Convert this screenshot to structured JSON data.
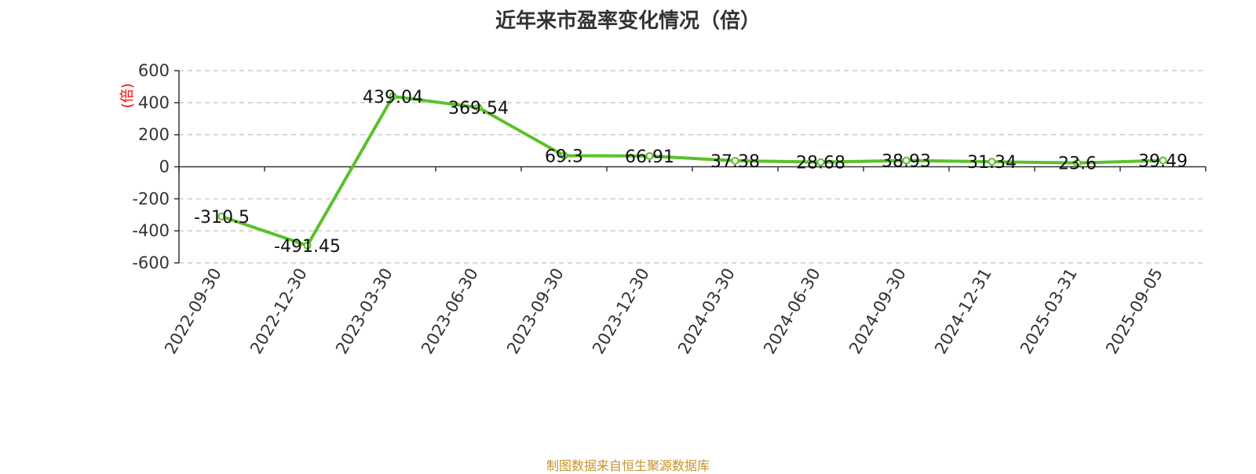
{
  "chart_data": {
    "type": "line",
    "title": "近年来市盈率变化情况（倍）",
    "ylabel": "(倍)",
    "source": "制图数据来自恒生聚源数据库",
    "categories": [
      "2022-09-30",
      "2022-12-30",
      "2023-03-30",
      "2023-06-30",
      "2023-09-30",
      "2023-12-30",
      "2024-03-30",
      "2024-06-30",
      "2024-09-30",
      "2024-12-31",
      "2025-03-31",
      "2025-09-05"
    ],
    "series": [
      {
        "values": [
          -310.5,
          -491.45,
          439.04,
          369.54,
          69.3,
          66.91,
          37.38,
          28.68,
          38.93,
          31.34,
          23.6,
          39.49
        ]
      }
    ],
    "data_labels": [
      "-310.5",
      "-491.45",
      "439.04",
      "369.54",
      "69.3",
      "66.91",
      "37.38",
      "28.68",
      "38.93",
      "31.34",
      "23.6",
      "39.49"
    ],
    "y_ticks": [
      "600",
      "400",
      "200",
      "0",
      "-200",
      "-400",
      "-600"
    ],
    "y_tick_values": [
      600,
      400,
      200,
      0,
      -200,
      -400,
      -600
    ],
    "ylim": [
      -600,
      600
    ],
    "grid": true,
    "colors": {
      "line": "#5cc02a",
      "unit_label": "#ff0000",
      "source": "#c8922a"
    }
  }
}
